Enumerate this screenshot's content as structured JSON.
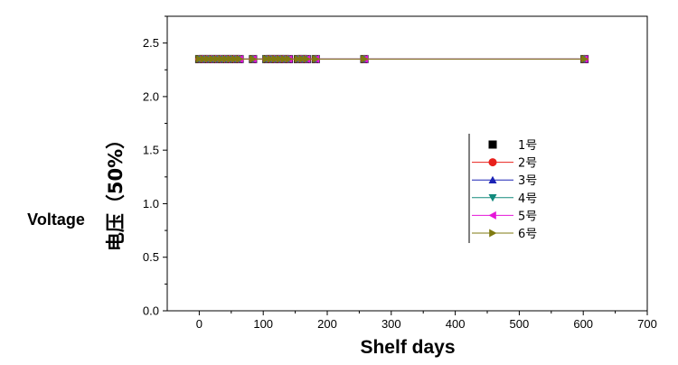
{
  "chart_data": {
    "type": "line",
    "xlabel": "Shelf days",
    "ylabel_en": "Voltage",
    "ylabel_zh": "电压（50%）",
    "xlim": [
      -50,
      700
    ],
    "ylim": [
      0.0,
      2.75
    ],
    "x_ticks": [
      0,
      100,
      200,
      300,
      400,
      500,
      600,
      700
    ],
    "y_ticks": [
      0.0,
      0.5,
      1.0,
      1.5,
      2.0,
      2.5
    ],
    "x_tick_labels": [
      "0",
      "100",
      "200",
      "300",
      "400",
      "500",
      "600",
      "700"
    ],
    "y_tick_labels": [
      "0.0",
      "0.5",
      "1.0",
      "1.5",
      "2.0",
      "2.5"
    ],
    "grid": false,
    "legend_position": "right",
    "x": [
      0,
      7,
      14,
      21,
      28,
      35,
      42,
      49,
      56,
      63,
      84,
      105,
      112,
      119,
      126,
      133,
      140,
      154,
      161,
      168,
      182,
      258,
      602
    ],
    "series": [
      {
        "name": "1号",
        "marker": "square",
        "color": "#000000",
        "y": [
          2.35,
          2.35,
          2.35,
          2.35,
          2.35,
          2.35,
          2.35,
          2.35,
          2.35,
          2.35,
          2.35,
          2.35,
          2.35,
          2.35,
          2.35,
          2.35,
          2.35,
          2.35,
          2.35,
          2.35,
          2.35,
          2.35,
          2.35
        ]
      },
      {
        "name": "2号",
        "marker": "circle",
        "color": "#e8201c",
        "y": [
          2.35,
          2.35,
          2.35,
          2.35,
          2.35,
          2.35,
          2.35,
          2.35,
          2.35,
          2.35,
          2.35,
          2.35,
          2.35,
          2.35,
          2.35,
          2.35,
          2.35,
          2.35,
          2.35,
          2.35,
          2.35,
          2.35,
          2.35
        ]
      },
      {
        "name": "3号",
        "marker": "triangle-up",
        "color": "#1b23b5",
        "y": [
          2.35,
          2.35,
          2.35,
          2.35,
          2.35,
          2.35,
          2.35,
          2.35,
          2.35,
          2.35,
          2.35,
          2.35,
          2.35,
          2.35,
          2.35,
          2.35,
          2.35,
          2.35,
          2.35,
          2.35,
          2.35,
          2.35,
          2.35
        ]
      },
      {
        "name": "4号",
        "marker": "triangle-down",
        "color": "#128a7d",
        "y": [
          2.35,
          2.35,
          2.35,
          2.35,
          2.35,
          2.35,
          2.35,
          2.35,
          2.35,
          2.35,
          2.35,
          2.35,
          2.35,
          2.35,
          2.35,
          2.35,
          2.35,
          2.35,
          2.35,
          2.35,
          2.35,
          2.35,
          2.35
        ]
      },
      {
        "name": "5号",
        "marker": "triangle-left",
        "color": "#e516d8",
        "y": [
          2.35,
          2.35,
          2.35,
          2.35,
          2.35,
          2.35,
          2.35,
          2.35,
          2.35,
          2.35,
          2.35,
          2.35,
          2.35,
          2.35,
          2.35,
          2.35,
          2.35,
          2.35,
          2.35,
          2.35,
          2.35,
          2.35,
          2.35
        ]
      },
      {
        "name": "6号",
        "marker": "triangle-right",
        "color": "#7f7a10",
        "y": [
          2.35,
          2.35,
          2.35,
          2.35,
          2.35,
          2.35,
          2.35,
          2.35,
          2.35,
          2.35,
          2.35,
          2.35,
          2.35,
          2.35,
          2.35,
          2.35,
          2.35,
          2.35,
          2.35,
          2.35,
          2.35,
          2.35,
          2.35
        ]
      }
    ]
  }
}
